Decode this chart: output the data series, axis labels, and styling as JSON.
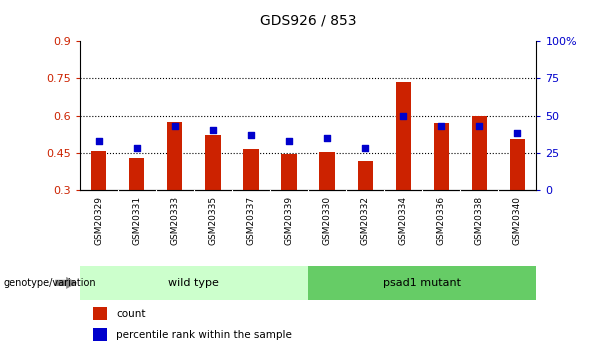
{
  "title": "GDS926 / 853",
  "samples": [
    "GSM20329",
    "GSM20331",
    "GSM20333",
    "GSM20335",
    "GSM20337",
    "GSM20339",
    "GSM20330",
    "GSM20332",
    "GSM20334",
    "GSM20336",
    "GSM20338",
    "GSM20340"
  ],
  "count_values": [
    0.455,
    0.428,
    0.575,
    0.52,
    0.463,
    0.443,
    0.452,
    0.418,
    0.735,
    0.57,
    0.598,
    0.505
  ],
  "percentile_values": [
    33,
    28,
    43,
    40,
    37,
    33,
    35,
    28,
    50,
    43,
    43,
    38
  ],
  "ylim_left": [
    0.3,
    0.9
  ],
  "ylim_right": [
    0,
    100
  ],
  "yticks_left": [
    0.3,
    0.45,
    0.6,
    0.75,
    0.9
  ],
  "yticks_right": [
    0,
    25,
    50,
    75,
    100
  ],
  "ytick_labels_left": [
    "0.3",
    "0.45",
    "0.6",
    "0.75",
    "0.9"
  ],
  "ytick_labels_right": [
    "0",
    "25",
    "50",
    "75",
    "100%"
  ],
  "grid_lines": [
    0.45,
    0.6,
    0.75
  ],
  "bar_color": "#cc2200",
  "square_color": "#0000cc",
  "wild_type_indices": [
    0,
    1,
    2,
    3,
    4,
    5
  ],
  "mutant_indices": [
    6,
    7,
    8,
    9,
    10,
    11
  ],
  "wild_type_label": "wild type",
  "mutant_label": "psad1 mutant",
  "wild_type_color": "#ccffcc",
  "mutant_color": "#66cc66",
  "group_label": "genotype/variation",
  "legend_count_label": "count",
  "legend_percentile_label": "percentile rank within the sample",
  "bar_width": 0.4,
  "bar_bottom": 0.3,
  "background_color": "#ffffff",
  "plot_bg_color": "#ffffff",
  "tick_area_bg": "#bbbbbb"
}
